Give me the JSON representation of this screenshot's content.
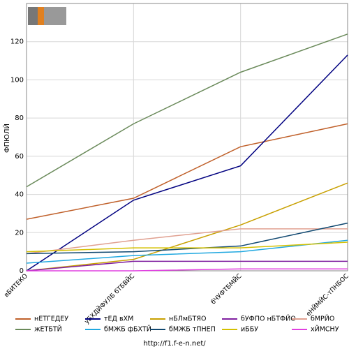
{
  "chart_data": {
    "type": "line",
    "y_label": "ФПЮЛЙ",
    "categories": [
      "вБИТЕКО",
      "уБХДЙФУЛБ бТБВЙС",
      "бЧУФТБМЙС",
      "еНЙМЙС-тПНБОС"
    ],
    "series": [
      {
        "name": "нЕТГЕДЕУ",
        "color": "#c0602a",
        "values": [
          27,
          38,
          65,
          77
        ]
      },
      {
        "name": "тЕД вХМ",
        "color": "#000080",
        "values": [
          0,
          37,
          55,
          113
        ]
      },
      {
        "name": "нБЛмБТЯО",
        "color": "#c8a000",
        "values": [
          0,
          6,
          24,
          46
        ]
      },
      {
        "name": "бУФПО нБТФЙО",
        "color": "#8020a0",
        "values": [
          0,
          5,
          5,
          5
        ]
      },
      {
        "name": "бМРЙО",
        "color": "#e0a090",
        "values": [
          9,
          16,
          22,
          22
        ]
      },
      {
        "name": "жЕТБТЙ",
        "color": "#6a8a5a",
        "values": [
          44,
          77,
          104,
          124
        ]
      },
      {
        "name": "бМЖБ фБХТЙ",
        "color": "#20a8e0",
        "values": [
          4,
          8,
          10,
          16
        ]
      },
      {
        "name": "бМЖБ тПНЕП",
        "color": "#104870",
        "values": [
          9,
          10,
          13,
          25
        ]
      },
      {
        "name": "иББУ",
        "color": "#d4c000",
        "values": [
          10,
          12,
          12,
          15
        ]
      },
      {
        "name": "хЙМСНУ",
        "color": "#e040e0",
        "values": [
          0,
          0,
          1,
          1
        ]
      }
    ],
    "ylim": [
      0,
      140
    ],
    "yticks": [
      0,
      20,
      40,
      60,
      80,
      100,
      120
    ],
    "grid": true,
    "footer": "http://f1.f-e-n.net/"
  }
}
